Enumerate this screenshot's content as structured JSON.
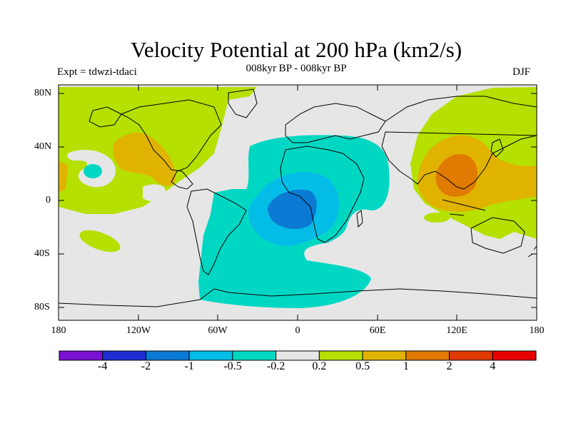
{
  "figure": {
    "title": "Velocity Potential at 200 hPa (km2/s)",
    "subtitle": "008kyr BP - 008kyr BP",
    "left_label": "Expt = tdwzi-tdaci",
    "right_label": "DJF"
  },
  "map": {
    "lat_ticks": [
      "80N",
      "40N",
      "0",
      "40S",
      "80S"
    ],
    "lon_ticks": [
      "180",
      "120W",
      "60W",
      "0",
      "60E",
      "120E",
      "180"
    ],
    "land_color": "#000000",
    "ocean_background": "#e6e6e6"
  },
  "colorbar": {
    "colors": [
      "#7a12d4",
      "#1e2ed4",
      "#0a7ad4",
      "#04bde6",
      "#00d7c3",
      "#e6e6e6",
      "#b5e000",
      "#e0b300",
      "#e07a00",
      "#e03a00",
      "#e80000"
    ],
    "labels": [
      "-4",
      "-2",
      "-1",
      "-0.5",
      "-0.2",
      "0.2",
      "0.5",
      "1",
      "2",
      "4"
    ]
  },
  "chart_data": {
    "type": "heatmap",
    "title": "Velocity Potential at 200 hPa (km2/s)",
    "subtitle": "008kyr BP - 008kyr BP",
    "xlabel": "",
    "ylabel": "",
    "x_ticks": [
      "180",
      "120W",
      "60W",
      "0",
      "60E",
      "120E",
      "180"
    ],
    "y_ticks": [
      "80N",
      "40N",
      "0",
      "40S",
      "80S"
    ],
    "levels": [
      -4,
      -2,
      -1,
      -0.5,
      -0.2,
      0.2,
      0.5,
      1,
      2,
      4
    ],
    "season": "DJF",
    "features": [
      {
        "region": "tropical Atlantic / equatorial Africa",
        "min_value": -1,
        "range": "-1 to -0.5"
      },
      {
        "region": "South Atlantic / Southern Ocean",
        "range": "-0.5 to -0.2"
      },
      {
        "region": "western Pacific / East Asia",
        "max_value": 2,
        "range": "1 to 2"
      },
      {
        "region": "North America / eastern Pacific",
        "range": "0.5 to 1"
      },
      {
        "region": "North Atlantic / Arctic",
        "range": "0.2 to 0.5"
      }
    ]
  }
}
